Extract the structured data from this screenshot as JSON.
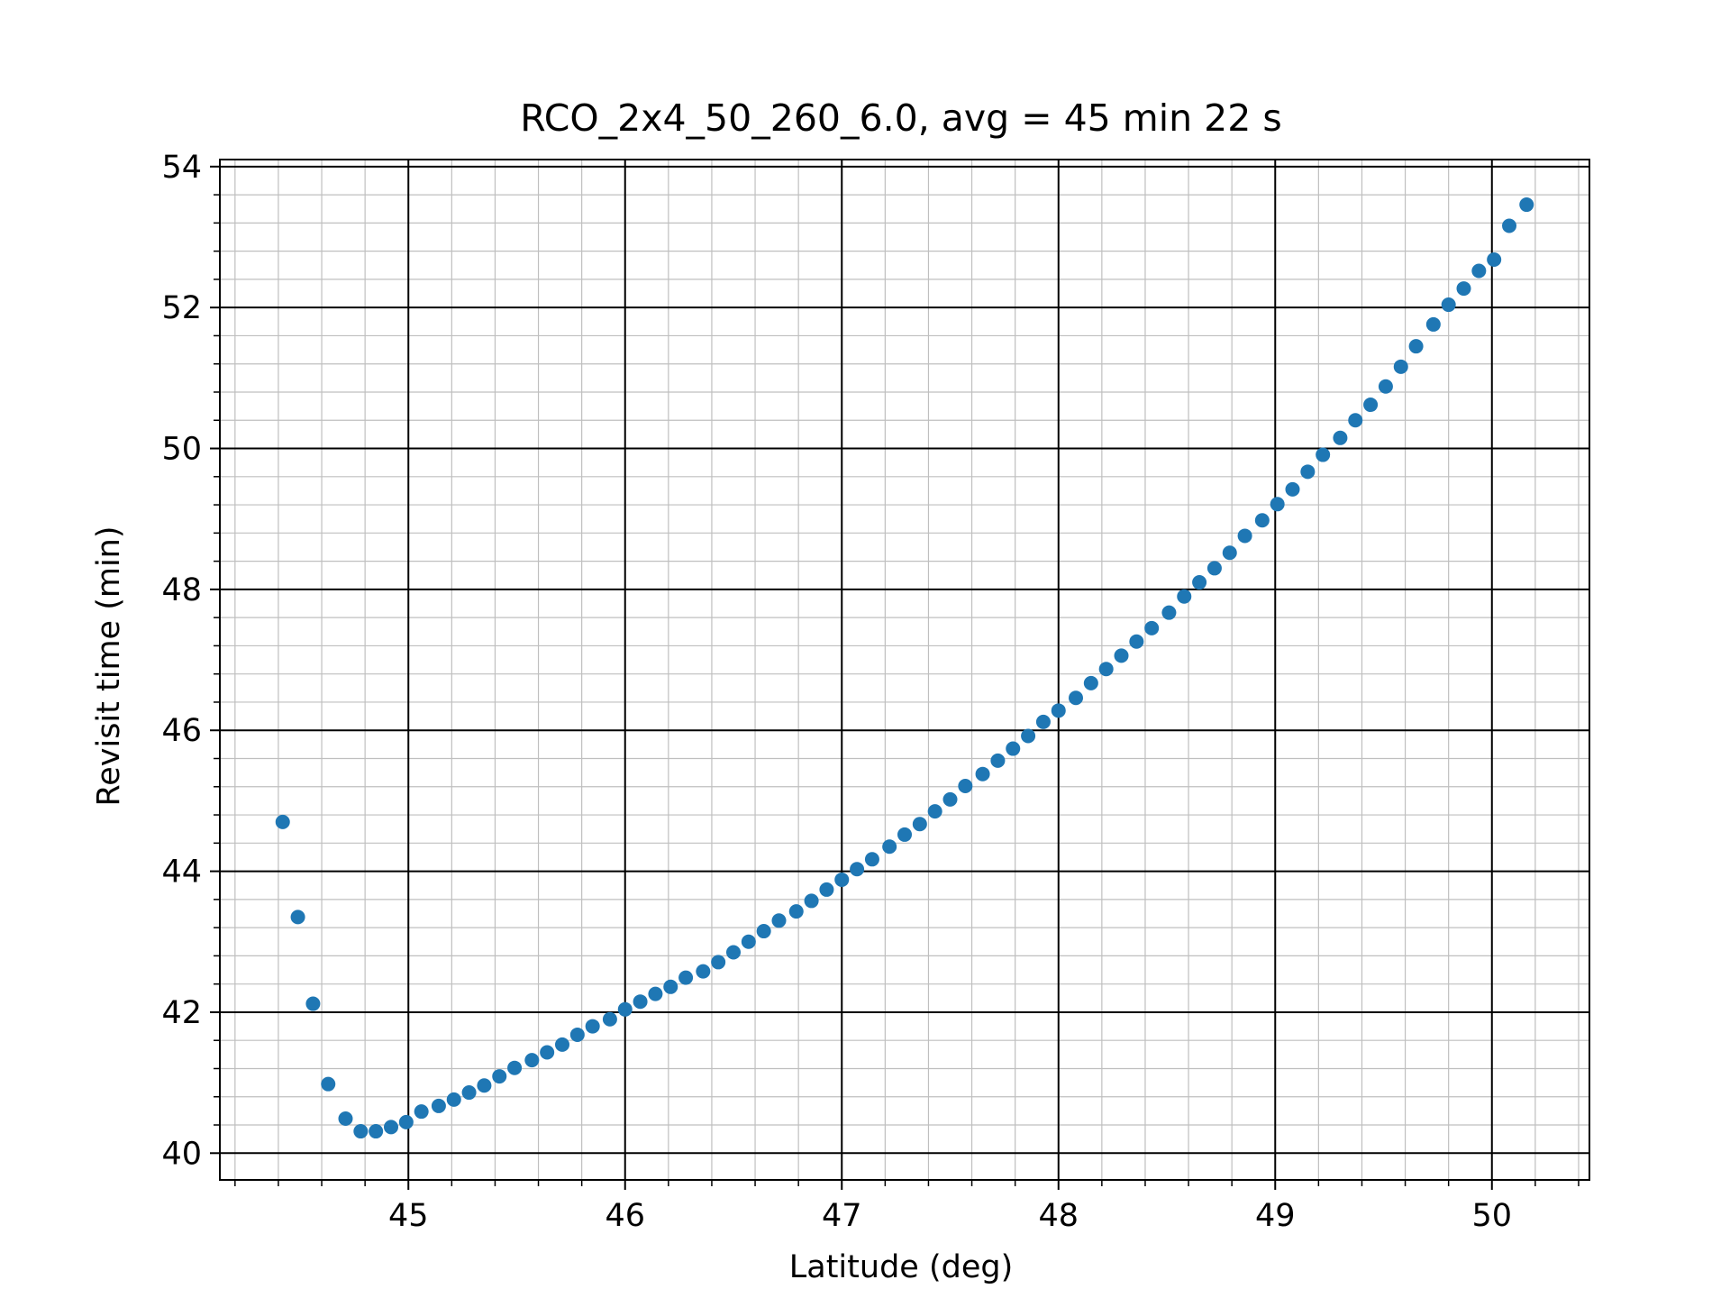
{
  "chart_data": {
    "type": "scatter",
    "title": "RCO_2x4_50_260_6.0, avg = 45 min 22 s",
    "xlabel": "Latitude (deg)",
    "ylabel": "Revisit time (min)",
    "xlim": [
      44.13,
      50.45
    ],
    "ylim": [
      39.62,
      54.1
    ],
    "xticks": [
      45,
      46,
      47,
      48,
      49,
      50
    ],
    "yticks": [
      40,
      42,
      44,
      46,
      48,
      50,
      52,
      54
    ],
    "xtick_labels": [
      "45",
      "46",
      "47",
      "48",
      "49",
      "50"
    ],
    "ytick_labels": [
      "40",
      "42",
      "44",
      "46",
      "48",
      "50",
      "52",
      "54"
    ],
    "grid": {
      "major": true,
      "minor": true
    },
    "marker_color": "#1f77b4",
    "series": [
      {
        "x": [
          44.42,
          44.49,
          44.56,
          44.63,
          44.71,
          44.78,
          44.85,
          44.92,
          44.99,
          45.06,
          45.14,
          45.21,
          45.28,
          45.35,
          45.42,
          45.49,
          45.57,
          45.64,
          45.71,
          45.78,
          45.85,
          45.93,
          46.0,
          46.07,
          46.14,
          46.21,
          46.28,
          46.36,
          46.43,
          46.5,
          46.57,
          46.64,
          46.71,
          46.79,
          46.86,
          46.93,
          47.0,
          47.07,
          47.14,
          47.22,
          47.29,
          47.36,
          47.43,
          47.5,
          47.57,
          47.65,
          47.72,
          47.79,
          47.86,
          47.93,
          48.0,
          48.08,
          48.15,
          48.22,
          48.29,
          48.36,
          48.43,
          48.51,
          48.58,
          48.65,
          48.72,
          48.79,
          48.86,
          48.94,
          49.01,
          49.08,
          49.15,
          49.22,
          49.3,
          49.37,
          49.44,
          49.51,
          49.58,
          49.65,
          49.73,
          49.8,
          49.87,
          49.94,
          50.01,
          50.08,
          50.16
        ],
        "y": [
          44.7,
          43.35,
          42.12,
          40.98,
          40.49,
          40.31,
          40.31,
          40.37,
          40.44,
          40.59,
          40.67,
          40.76,
          40.86,
          40.96,
          41.09,
          41.21,
          41.32,
          41.43,
          41.54,
          41.68,
          41.8,
          41.9,
          42.04,
          42.15,
          42.26,
          42.36,
          42.49,
          42.58,
          42.71,
          42.85,
          43.0,
          43.15,
          43.3,
          43.43,
          43.58,
          43.74,
          43.88,
          44.03,
          44.17,
          44.35,
          44.52,
          44.67,
          44.85,
          45.02,
          45.21,
          45.38,
          45.57,
          45.74,
          45.92,
          46.12,
          46.28,
          46.46,
          46.67,
          46.87,
          47.06,
          47.26,
          47.45,
          47.67,
          47.9,
          48.1,
          48.3,
          48.52,
          48.76,
          48.98,
          49.21,
          49.42,
          49.67,
          49.91,
          50.15,
          50.4,
          50.62,
          50.88,
          51.16,
          51.45,
          51.76,
          52.04,
          52.27,
          52.52,
          52.68,
          53.16,
          53.46
        ]
      }
    ]
  }
}
